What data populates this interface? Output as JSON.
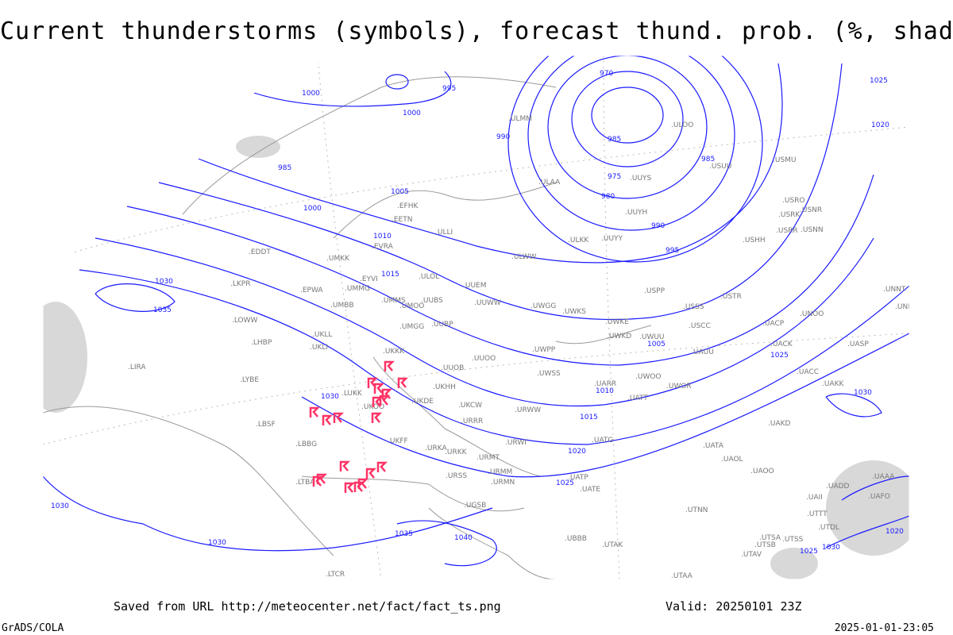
{
  "title": "Current thunderstorms (symbols), forecast thund. prob. (%, shaded)",
  "footer": {
    "source": "Saved from URL http://meteocenter.net/fact/fact_ts.png",
    "valid": "Valid: 20250101 23Z",
    "software": "GrADS/COLA",
    "generated": "2025-01-01-23:05"
  },
  "colors": {
    "isobar": "#1a1aff",
    "thunderstorm_symbol": "#ff3366",
    "coastline": "#999999",
    "probability_shading": "#d0d0d0"
  },
  "map": {
    "isobar_labels": [
      "970",
      "975",
      "980",
      "985",
      "985",
      "990",
      "990",
      "995",
      "995",
      "1000",
      "1000",
      "1000",
      "985",
      "1005",
      "1005",
      "1010",
      "1010",
      "1015",
      "1015",
      "1020",
      "1020",
      "1025",
      "1025",
      "1025",
      "1030",
      "1030",
      "1030",
      "1030",
      "1030",
      "1035",
      "1035",
      "1040",
      "1030",
      "1020",
      "1025"
    ],
    "stations": [
      "ULMM",
      "ULOO",
      "ULAA",
      "UUYY",
      "UUYS",
      "USUU",
      "USMU",
      "USRO",
      "USRK",
      "USNR",
      "USRR",
      "USNN",
      "USHH",
      "ULKK",
      "ULWW",
      "UUYH",
      "EFHK",
      "EETN",
      "ULLI",
      "EVRA",
      "ULOL",
      "UMKK",
      "EYVI",
      "EDDT",
      "LKPR",
      "EPWA",
      "UMMG",
      "UMMS",
      "UMOO",
      "UUBS",
      "UMBB",
      "UMGG",
      "UUBP",
      "UUEM",
      "UUWW",
      "UWGG",
      "UWKS",
      "UWPP",
      "UWKE",
      "UWKD",
      "UWUU",
      "USPP",
      "USSS",
      "USCC",
      "USTR",
      "UACP",
      "UNOO",
      "UASP",
      "UNNT",
      "UNBB",
      "LOWW",
      "LHBP",
      "UKLL",
      "UKLI",
      "UKKK",
      "UUOB",
      "UUOO",
      "LIRA",
      "LYBE",
      "LUKK",
      "UKOO",
      "UKDE",
      "UKHH",
      "UKCW",
      "UKFF",
      "URRR",
      "URKA",
      "URKK",
      "URWI",
      "URWW",
      "UWSS",
      "UWOO",
      "UARR",
      "UATT",
      "UWOR",
      "UATG",
      "UAUU",
      "UACK",
      "UACC",
      "UAKK",
      "UAKD",
      "UATA",
      "UAOL",
      "UAOO",
      "LBSF",
      "LBBG",
      "LTBA",
      "URMT",
      "URMM",
      "URMN",
      "URSS",
      "UGSB",
      "UBBB",
      "UTAK",
      "UATE",
      "UATP",
      "UTNN",
      "UAII",
      "UADD",
      "UTTT",
      "UTDL",
      "UTSA",
      "UTSS",
      "UTSB",
      "UTAV",
      "UTAA",
      "UAFO",
      "UAAA",
      "LTCR"
    ]
  }
}
